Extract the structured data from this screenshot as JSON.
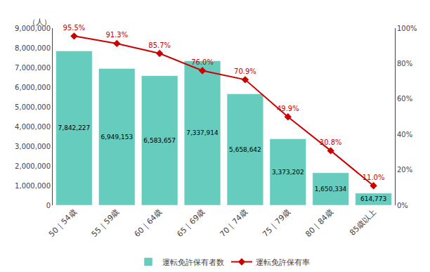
{
  "chart_data": {
    "type": "bar",
    "categories": [
      "50｜54歳",
      "55｜59歳",
      "60｜64歳",
      "65｜69歳",
      "70｜74歳",
      "75｜79歳",
      "80｜84歳",
      "85歳以上"
    ],
    "ylabel": "（人）",
    "series": [
      {
        "name": "運転免許保有者数",
        "type": "bar",
        "color": "#66CDBE",
        "values": [
          7842227,
          6949153,
          6583657,
          7337914,
          5658642,
          3373202,
          1650334,
          614773
        ],
        "value_labels": [
          "7,842,227",
          "6,949,153",
          "6,583,657",
          "7,337,914",
          "5,658,642",
          "3,373,202",
          "1,650,334",
          "614,773"
        ]
      },
      {
        "name": "運転免許保有率",
        "type": "line",
        "axis": "y2",
        "color": "#CC0000",
        "marker": "diamond",
        "values": [
          95.5,
          91.3,
          85.7,
          76.0,
          70.9,
          49.9,
          30.8,
          11.0
        ],
        "value_labels": [
          "95.5%",
          "91.3%",
          "85.7%",
          "76.0%",
          "70.9%",
          "49.9%",
          "30.8%",
          "11.0%"
        ]
      }
    ],
    "ylim": [
      0,
      9000000
    ],
    "yticks": [
      0,
      {
        "value": 1000000,
        "label": "1,000,000"
      },
      {
        "value": 2000000,
        "label": "2,000,000"
      },
      {
        "value": 3000000,
        "label": "3,000,000"
      },
      {
        "value": 4000000,
        "label": "4,000,000"
      },
      {
        "value": 5000000,
        "label": "5,000,000"
      },
      {
        "value": 6000000,
        "label": "6,000,000"
      },
      {
        "value": 7000000,
        "label": "7,000,000"
      },
      {
        "value": 8000000,
        "label": "8,000,000"
      },
      {
        "value": 9000000,
        "label": "9,000,000"
      }
    ],
    "y2lim": [
      0,
      100
    ],
    "y2ticks": [
      {
        "value": 0,
        "label": "0%"
      },
      {
        "value": 20,
        "label": "20%"
      },
      {
        "value": 40,
        "label": "40%"
      },
      {
        "value": 60,
        "label": "60%"
      },
      {
        "value": 80,
        "label": "80%"
      },
      {
        "value": 100,
        "label": "100%"
      }
    ],
    "data_labels": true,
    "legend": "bottom",
    "grid": false
  }
}
